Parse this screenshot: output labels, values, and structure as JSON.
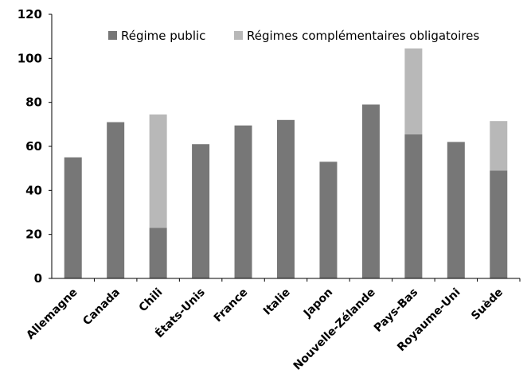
{
  "chart_data": {
    "type": "bar",
    "stacked": true,
    "categories": [
      "Allemagne",
      "Canada",
      "Chili",
      "États-Unis",
      "France",
      "Italie",
      "Japon",
      "Nouvelle-Zélande",
      "Pays-Bas",
      "Royaume-Uni",
      "Suède"
    ],
    "series": [
      {
        "name": "Régime public",
        "color": "#777777",
        "values": [
          55,
          71,
          23,
          61,
          69.5,
          72,
          53,
          79,
          65.5,
          62,
          49
        ]
      },
      {
        "name": "Régimes complémentaires obligatoires",
        "color": "#b8b8b8",
        "values": [
          0,
          0,
          51.5,
          0,
          0,
          0,
          0,
          0,
          39,
          0,
          22.5
        ]
      }
    ],
    "title": "",
    "xlabel": "",
    "ylabel": "",
    "ylim": [
      0,
      120
    ],
    "yticks": [
      0,
      20,
      40,
      60,
      80,
      100,
      120
    ],
    "grid": false,
    "legend": "top-right"
  }
}
